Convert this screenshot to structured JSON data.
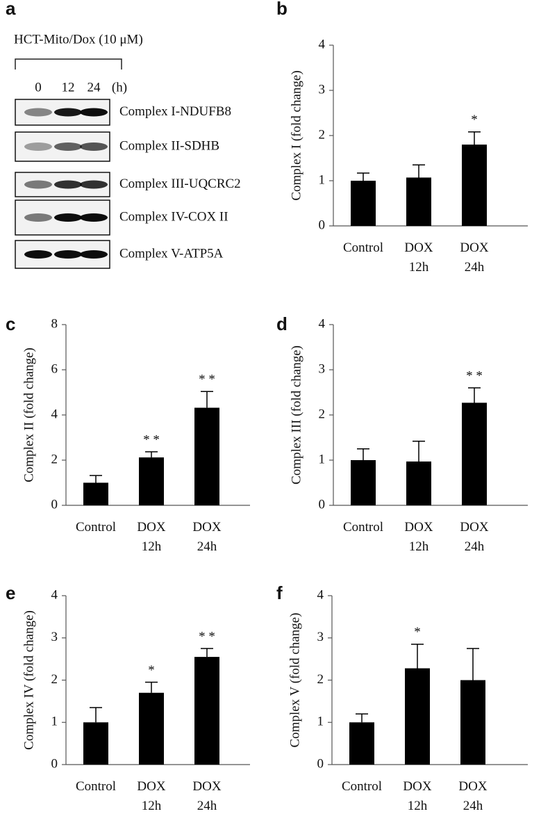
{
  "blot": {
    "panel": "a",
    "title": "HCT-Mito/Dox (10 μM)",
    "lanes": [
      "0",
      "12",
      "24"
    ],
    "unit": "(h)",
    "proteins": [
      "Complex I-NDUFB8",
      "Complex II-SDHB",
      "Complex III-UQCRC2",
      "Complex IV-COX II",
      "Complex V-ATP5A"
    ]
  },
  "chart_data": [
    {
      "type": "bar",
      "panel": "b",
      "ylabel": "Complex I (fold change)",
      "categories": [
        "Control",
        "DOX 12h",
        "DOX 24h"
      ],
      "values": [
        1.0,
        1.07,
        1.8
      ],
      "errors": [
        0.17,
        0.28,
        0.28
      ],
      "annotations": [
        null,
        null,
        "*"
      ],
      "color": "#000000",
      "ylim": [
        0,
        4
      ],
      "yticks": [
        0,
        1,
        2,
        3,
        4
      ]
    },
    {
      "type": "bar",
      "panel": "c",
      "ylabel": "Complex II (fold change)",
      "categories": [
        "Control",
        "DOX 12h",
        "DOX 24h"
      ],
      "values": [
        1.0,
        2.12,
        4.32
      ],
      "errors": [
        0.32,
        0.25,
        0.72
      ],
      "annotations": [
        null,
        "* *",
        "* *"
      ],
      "color": "#000000",
      "ylim": [
        0,
        8
      ],
      "yticks": [
        0,
        2,
        4,
        6,
        8
      ]
    },
    {
      "type": "bar",
      "panel": "d",
      "ylabel": "Complex III (fold change)",
      "categories": [
        "Control",
        "DOX 12h",
        "DOX 24h"
      ],
      "values": [
        1.0,
        0.97,
        2.27
      ],
      "errors": [
        0.25,
        0.45,
        0.33
      ],
      "annotations": [
        null,
        null,
        "* *"
      ],
      "color": "#000000",
      "ylim": [
        0,
        4
      ],
      "yticks": [
        0,
        1,
        2,
        3,
        4
      ]
    },
    {
      "type": "bar",
      "panel": "e",
      "ylabel": "Complex IV (fold change)",
      "categories": [
        "Control",
        "DOX 12h",
        "DOX 24h"
      ],
      "values": [
        1.0,
        1.7,
        2.55
      ],
      "errors": [
        0.35,
        0.25,
        0.2
      ],
      "annotations": [
        null,
        "*",
        "* *"
      ],
      "color": "#000000",
      "ylim": [
        0,
        4
      ],
      "yticks": [
        0,
        1,
        2,
        3,
        4
      ]
    },
    {
      "type": "bar",
      "panel": "f",
      "ylabel": "Complex V (fold change)",
      "categories": [
        "Control",
        "DOX 12h",
        "DOX 24h"
      ],
      "values": [
        1.0,
        2.28,
        2.0
      ],
      "errors": [
        0.2,
        0.57,
        0.75
      ],
      "annotations": [
        null,
        "*",
        null
      ],
      "color": "#000000",
      "ylim": [
        0,
        4
      ],
      "yticks": [
        0,
        1,
        2,
        3,
        4
      ]
    }
  ]
}
